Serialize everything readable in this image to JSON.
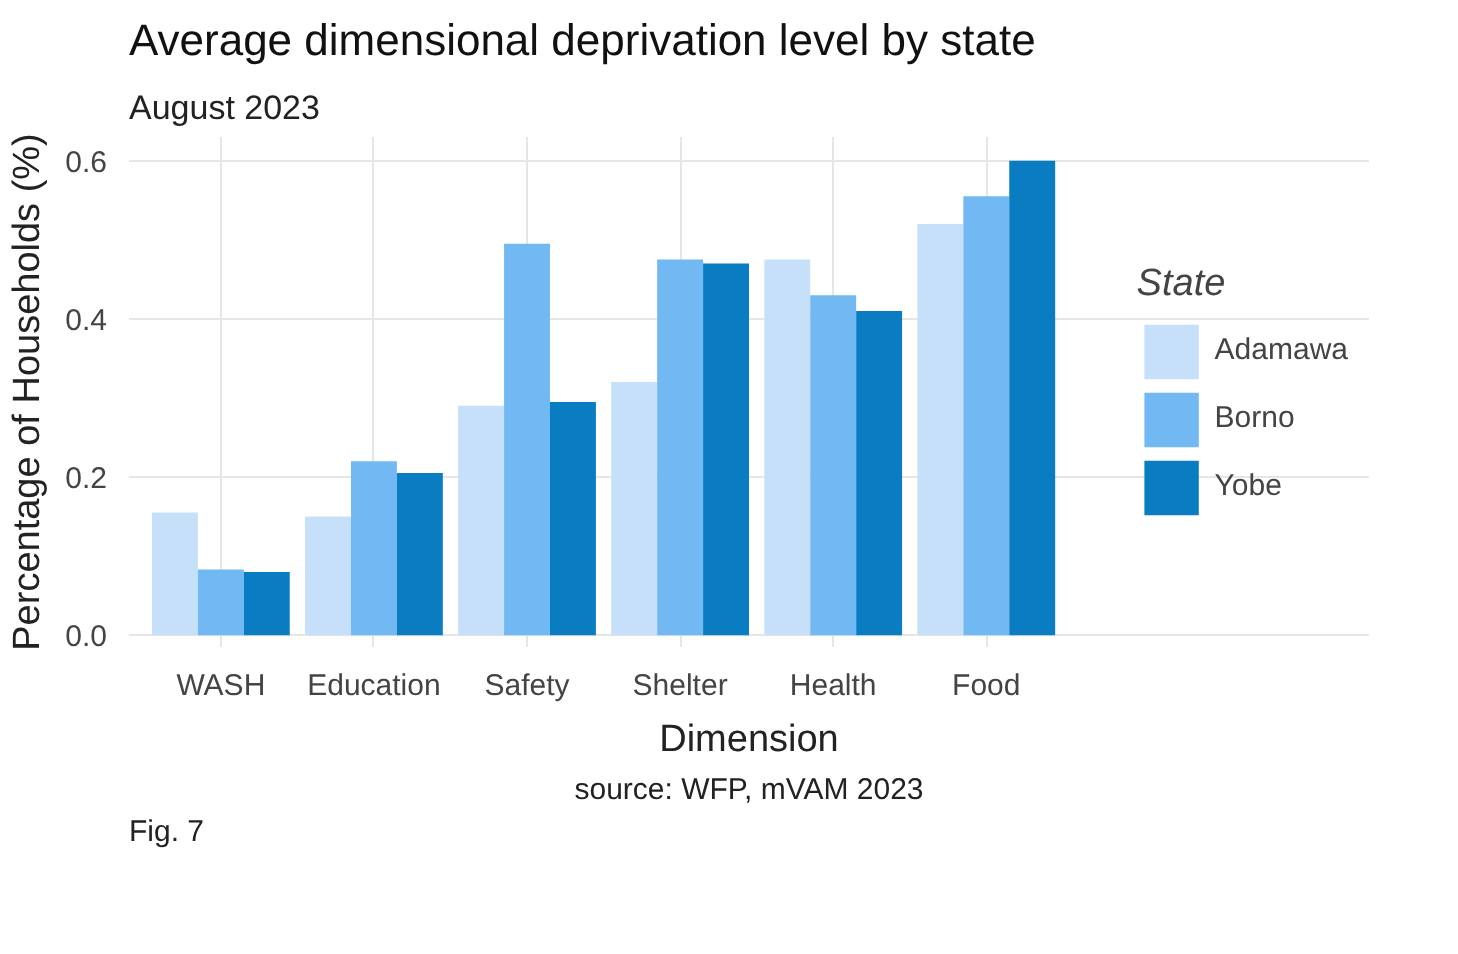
{
  "chart_data": {
    "type": "bar",
    "title": "Average dimensional deprivation level by state",
    "subtitle": "August 2023",
    "xlabel": "Dimension",
    "ylabel": "Percentage of Households (%)",
    "legend_title": "State",
    "categories": [
      "WASH",
      "Education",
      "Safety",
      "Shelter",
      "Health",
      "Food"
    ],
    "series": [
      {
        "name": "Adamawa",
        "color": "#c6e0fa",
        "values": [
          0.155,
          0.15,
          0.29,
          0.32,
          0.475,
          0.52
        ]
      },
      {
        "name": "Borno",
        "color": "#72b8f2",
        "values": [
          0.083,
          0.22,
          0.495,
          0.475,
          0.43,
          0.555
        ]
      },
      {
        "name": "Yobe",
        "color": "#0a7cc2",
        "values": [
          0.08,
          0.205,
          0.295,
          0.47,
          0.41,
          0.6
        ]
      }
    ],
    "ylim": [
      -0.015,
      0.63
    ],
    "yticks": [
      {
        "value": 0,
        "label": "0.0"
      },
      {
        "value": 0.2,
        "label": "0.2"
      },
      {
        "value": 0.4,
        "label": "0.4"
      },
      {
        "value": 0.6,
        "label": "0.6"
      }
    ],
    "grid": true,
    "legend": "right",
    "annotations": [
      "Fig. 7",
      "source: WFP, mVAM 2023"
    ]
  }
}
